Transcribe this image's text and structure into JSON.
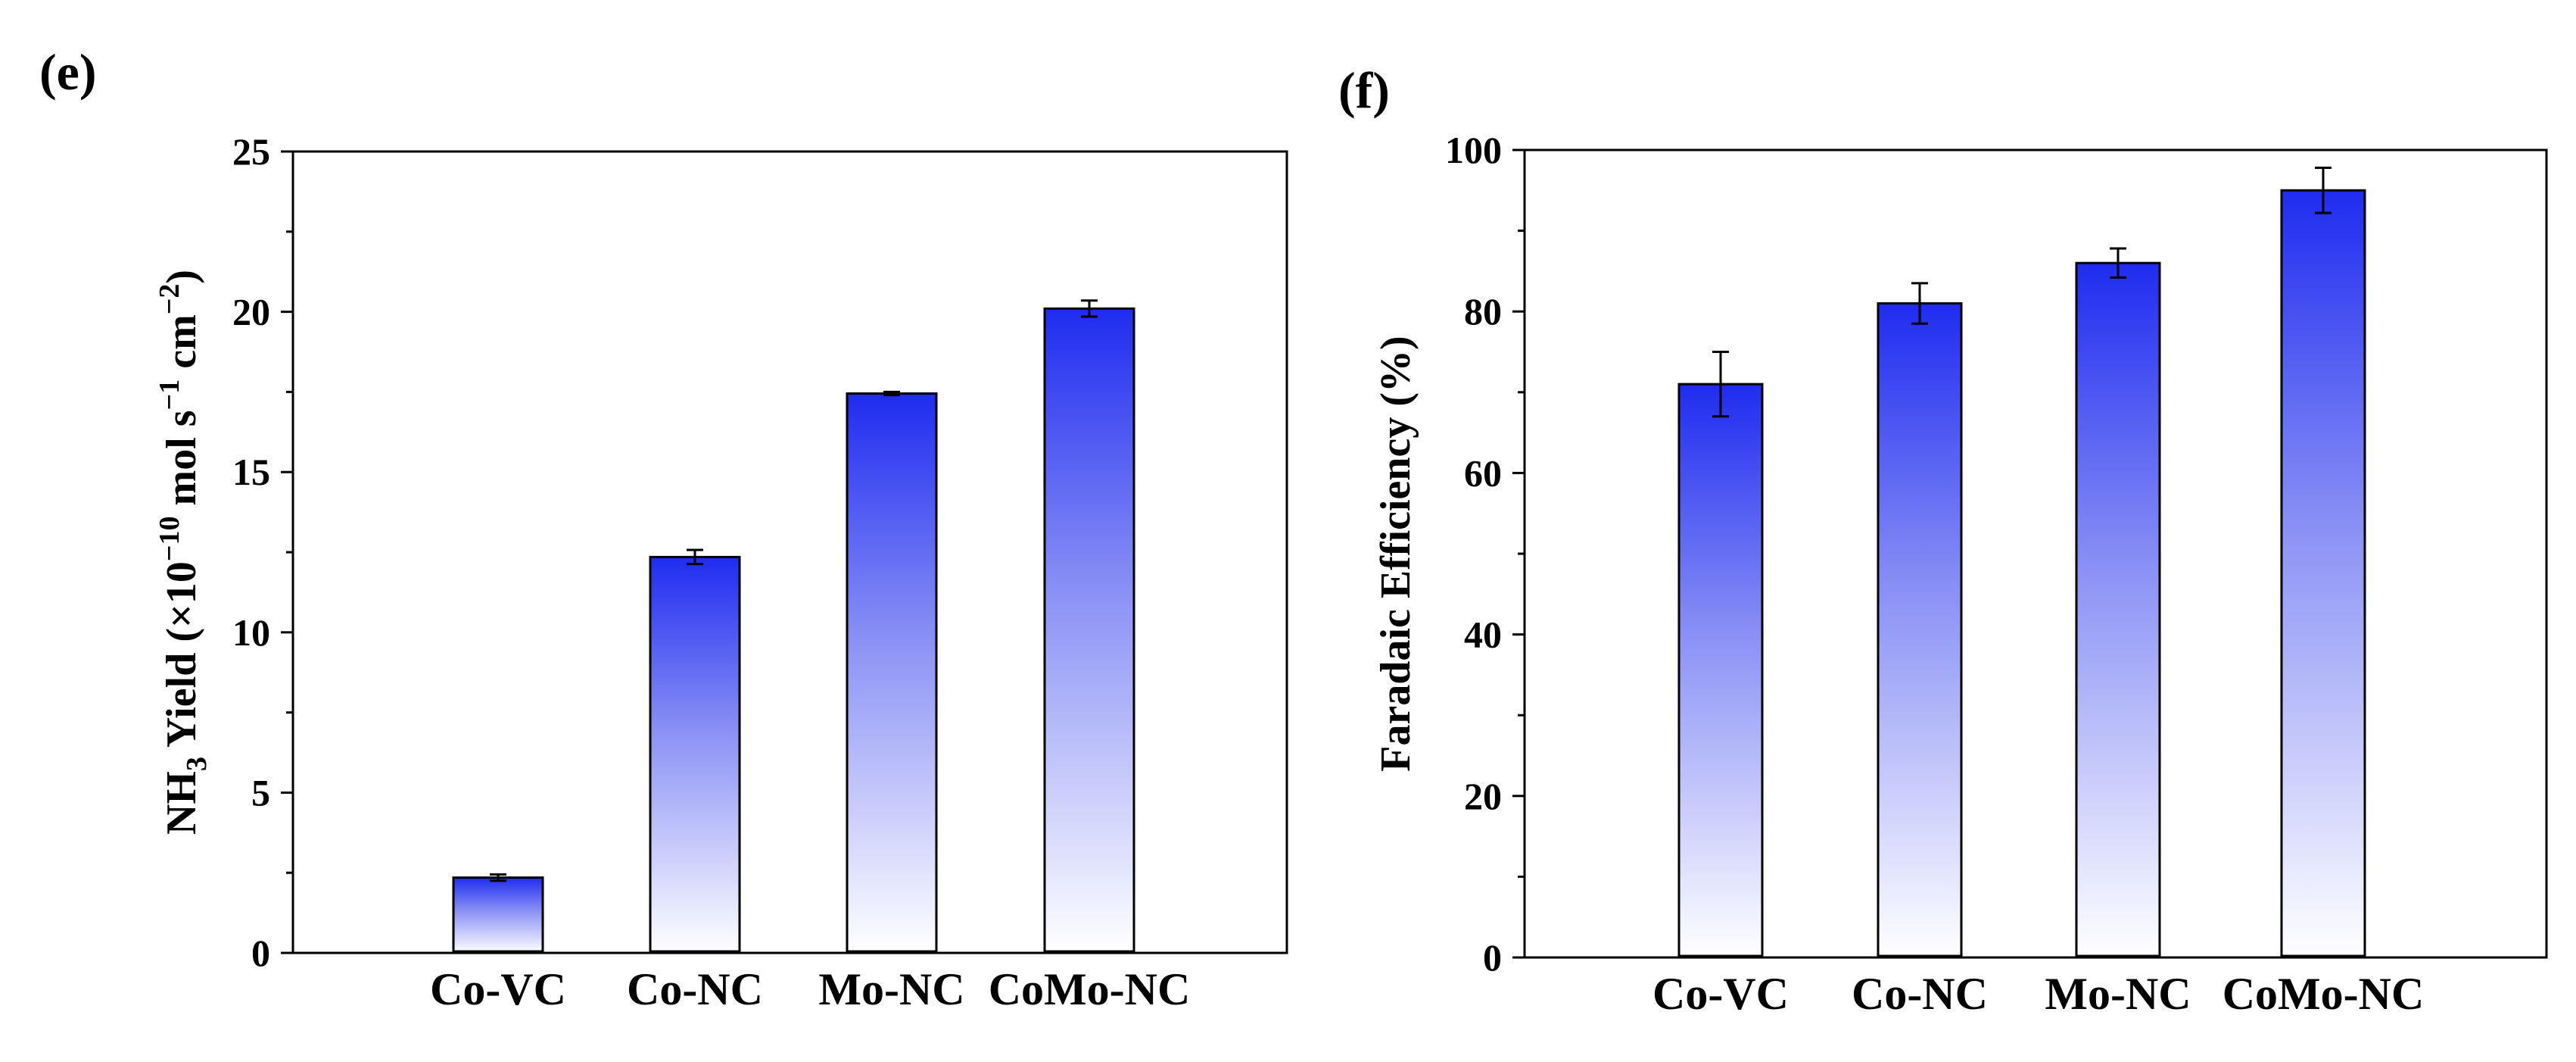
{
  "chart_data": [
    {
      "panel_label": "(e)",
      "type": "bar",
      "categories": [
        "Co-VC",
        "Co-NC",
        "Mo-NC",
        "CoMo-NC"
      ],
      "values": [
        2.35,
        12.35,
        17.45,
        20.1
      ],
      "errors": [
        0.1,
        0.22,
        0.05,
        0.25
      ],
      "ylabel_parts": {
        "pre": "NH",
        "sub": "3",
        "mid": " Yield (×10",
        "sup": "−10",
        "post1": " mol s",
        "sup2": "−1",
        "post2": " cm",
        "sup3": "−2",
        "end": ")"
      },
      "ylim": [
        0,
        25
      ],
      "yticks": [
        0,
        5,
        10,
        15,
        20,
        25
      ],
      "ytick_labels": [
        "0",
        "5",
        "10",
        "15",
        "20",
        "25"
      ],
      "bar_gradient": {
        "top": "#1f2cf0",
        "bottom": "#ffffff"
      }
    },
    {
      "panel_label": "(f)",
      "type": "bar",
      "categories": [
        "Co-VC",
        "Co-NC",
        "Mo-NC",
        "CoMo-NC"
      ],
      "values": [
        71,
        81,
        86,
        95
      ],
      "errors": [
        4,
        2.5,
        1.8,
        2.8
      ],
      "ylabel": "Faradaic Efficiency (%)",
      "ylim": [
        0,
        100
      ],
      "yticks": [
        0,
        20,
        40,
        60,
        80,
        100
      ],
      "ytick_labels": [
        "0",
        "20",
        "40",
        "60",
        "80",
        "100"
      ],
      "bar_gradient": {
        "top": "#1f2cf0",
        "bottom": "#ffffff"
      }
    }
  ]
}
